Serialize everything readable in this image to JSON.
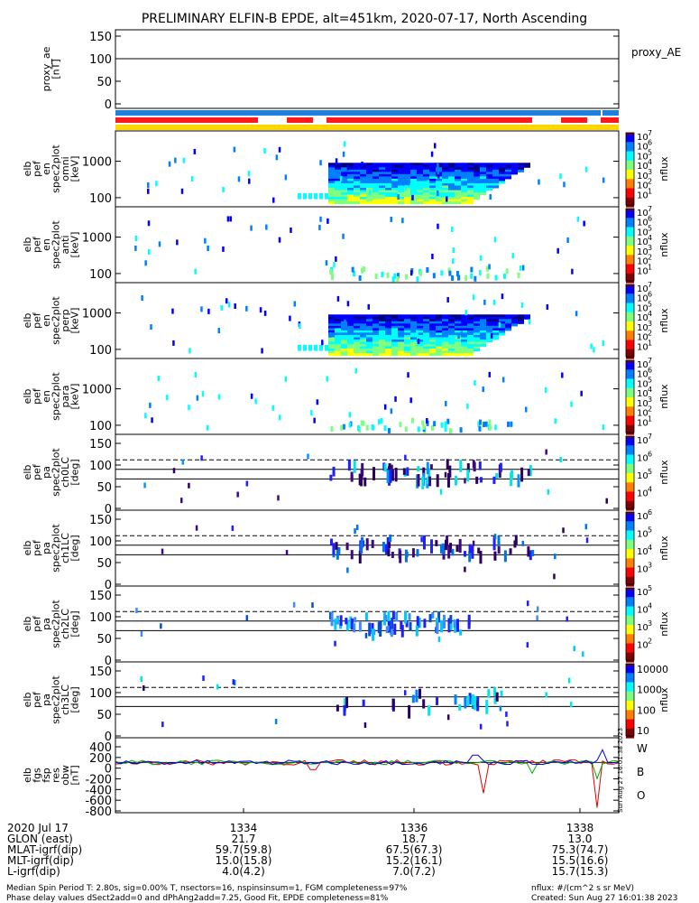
{
  "title": "PRELIMINARY ELFIN-B EPDE, alt=451km, 2020-07-17, North Ascending",
  "stamp": "Sun Aug 27 16:01:38 2023",
  "chart_data": {
    "type": "heatmap",
    "x_ticks": [
      "1334",
      "1336",
      "1338"
    ],
    "panels": [
      {
        "ylabel": [
          "proxy_ae",
          "[nT]"
        ],
        "side": "proxy_AE",
        "yticks": [
          "150",
          "100",
          "50",
          "0"
        ],
        "kind": "line"
      },
      {
        "ylabel": [
          "elb",
          "pef",
          "en",
          "spec2plot",
          "omni",
          "[keV]"
        ],
        "side": "nflux",
        "yticks": [
          "1000",
          "100"
        ],
        "kind": "spec",
        "cbar": [
          "10",
          "7",
          "10",
          "6",
          "10",
          "5",
          "10",
          "4",
          "10",
          "3",
          "10",
          "2",
          "10",
          "1"
        ]
      },
      {
        "ylabel": [
          "elb",
          "pef",
          "en",
          "spec2plot",
          "anti",
          "[keV]"
        ],
        "side": "nflux",
        "yticks": [
          "1000",
          "100"
        ],
        "kind": "spec",
        "cbar": [
          "10",
          "7",
          "10",
          "6",
          "10",
          "5",
          "10",
          "4",
          "10",
          "3",
          "10",
          "2",
          "10",
          "1"
        ]
      },
      {
        "ylabel": [
          "elb",
          "pef",
          "en",
          "spec2plot",
          "perp",
          "[keV]"
        ],
        "side": "nflux",
        "yticks": [
          "1000",
          "100"
        ],
        "kind": "spec",
        "cbar": [
          "10",
          "7",
          "10",
          "6",
          "10",
          "5",
          "10",
          "4",
          "10",
          "3",
          "10",
          "2",
          "10",
          "1"
        ]
      },
      {
        "ylabel": [
          "elb",
          "pef",
          "en",
          "spec2plot",
          "para",
          "[keV]"
        ],
        "side": "nflux",
        "yticks": [
          "1000",
          "100"
        ],
        "kind": "spec",
        "cbar": [
          "10",
          "7",
          "10",
          "6",
          "10",
          "5",
          "10",
          "4",
          "10",
          "3",
          "10",
          "2",
          "10",
          "1"
        ]
      },
      {
        "ylabel": [
          "elb",
          "pef",
          "pa",
          "spec2plot",
          "ch0LC",
          "[deg]"
        ],
        "side": "nflux",
        "yticks": [
          "150",
          "100",
          "50",
          "0"
        ],
        "kind": "pa",
        "cbar": [
          "10",
          "7",
          "10",
          "6",
          "10",
          "5",
          "10",
          "4"
        ]
      },
      {
        "ylabel": [
          "elb",
          "pef",
          "pa",
          "spec2plot",
          "ch1LC",
          "[deg]"
        ],
        "side": "nflux",
        "yticks": [
          "150",
          "100",
          "50",
          "0"
        ],
        "kind": "pa",
        "cbar": [
          "10",
          "6",
          "10",
          "5",
          "10",
          "4",
          "10",
          "3"
        ]
      },
      {
        "ylabel": [
          "elb",
          "pef",
          "pa",
          "spec2plot",
          "ch2LC",
          "[deg]"
        ],
        "side": "nflux",
        "yticks": [
          "150",
          "100",
          "50",
          "0"
        ],
        "kind": "pa",
        "cbar": [
          "10",
          "5",
          "10",
          "4",
          "10",
          "3",
          "10",
          "2"
        ]
      },
      {
        "ylabel": [
          "elb",
          "pef",
          "pa",
          "spec2plot",
          "ch3LC",
          "[deg]"
        ],
        "side": "nflux",
        "yticks": [
          "150",
          "100",
          "50",
          "0"
        ],
        "kind": "pa",
        "cbar_plain": [
          "10000",
          "1000",
          "100",
          "10"
        ]
      },
      {
        "ylabel": [
          "elb",
          "fgs",
          "fsp",
          "res",
          "obw",
          "[nT]"
        ],
        "side": "",
        "yticks": [
          "400",
          "200",
          "0",
          "-200",
          "-400",
          "-600",
          "-800"
        ],
        "kind": "fgs",
        "legend": [
          "W",
          "B",
          "O"
        ]
      }
    ],
    "bottom_table": {
      "rows": [
        {
          "label": "2020 Jul 17",
          "values": [
            "1334",
            "1336",
            "1338"
          ]
        },
        {
          "label": "GLON (east)",
          "values": [
            "21.7",
            "18.7",
            "13.0"
          ]
        },
        {
          "label": "MLAT-igrf(dip)",
          "values": [
            "59.7(59.8)",
            "67.5(67.3)",
            "75.3(74.7)"
          ]
        },
        {
          "label": "MLT-igrf(dip)",
          "values": [
            "15.0(15.8)",
            "15.2(16.1)",
            "15.5(16.6)"
          ]
        },
        {
          "label": "L-igrf(dip)",
          "values": [
            "4.0(4.2)",
            "7.0(7.2)",
            "15.7(15.3)"
          ]
        }
      ]
    }
  },
  "footer": {
    "line1": "Median Spin Period T: 2.80s, sig=0.00% T, nsectors=16, nspinsinsum=1, FGM completeness=97%",
    "line2": "Phase delay values dSect2add=0 and dPhAng2add=7.25, Good Fit, EPDE completeness=81%",
    "right1": "nflux: #/(cm^2 s sr MeV)",
    "right2": "Created: Sun Aug 27 16:01:38 2023"
  },
  "colors": {
    "blue_bar": "#1e7fe0",
    "red_bar": "#ff1a1a",
    "yellow_bar": "#ffd700"
  }
}
